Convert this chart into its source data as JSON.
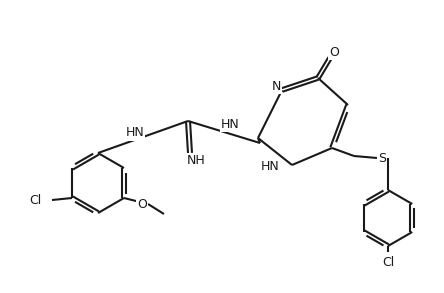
{
  "bg_color": "#ffffff",
  "line_color": "#1a1a1a",
  "label_color": "#1a1a1a",
  "line_width": 1.5,
  "font_size": 9,
  "figsize": [
    4.44,
    2.93
  ],
  "dpi": 100,
  "xlim": [
    0,
    4.44
  ],
  "ylim": [
    0,
    2.93
  ]
}
